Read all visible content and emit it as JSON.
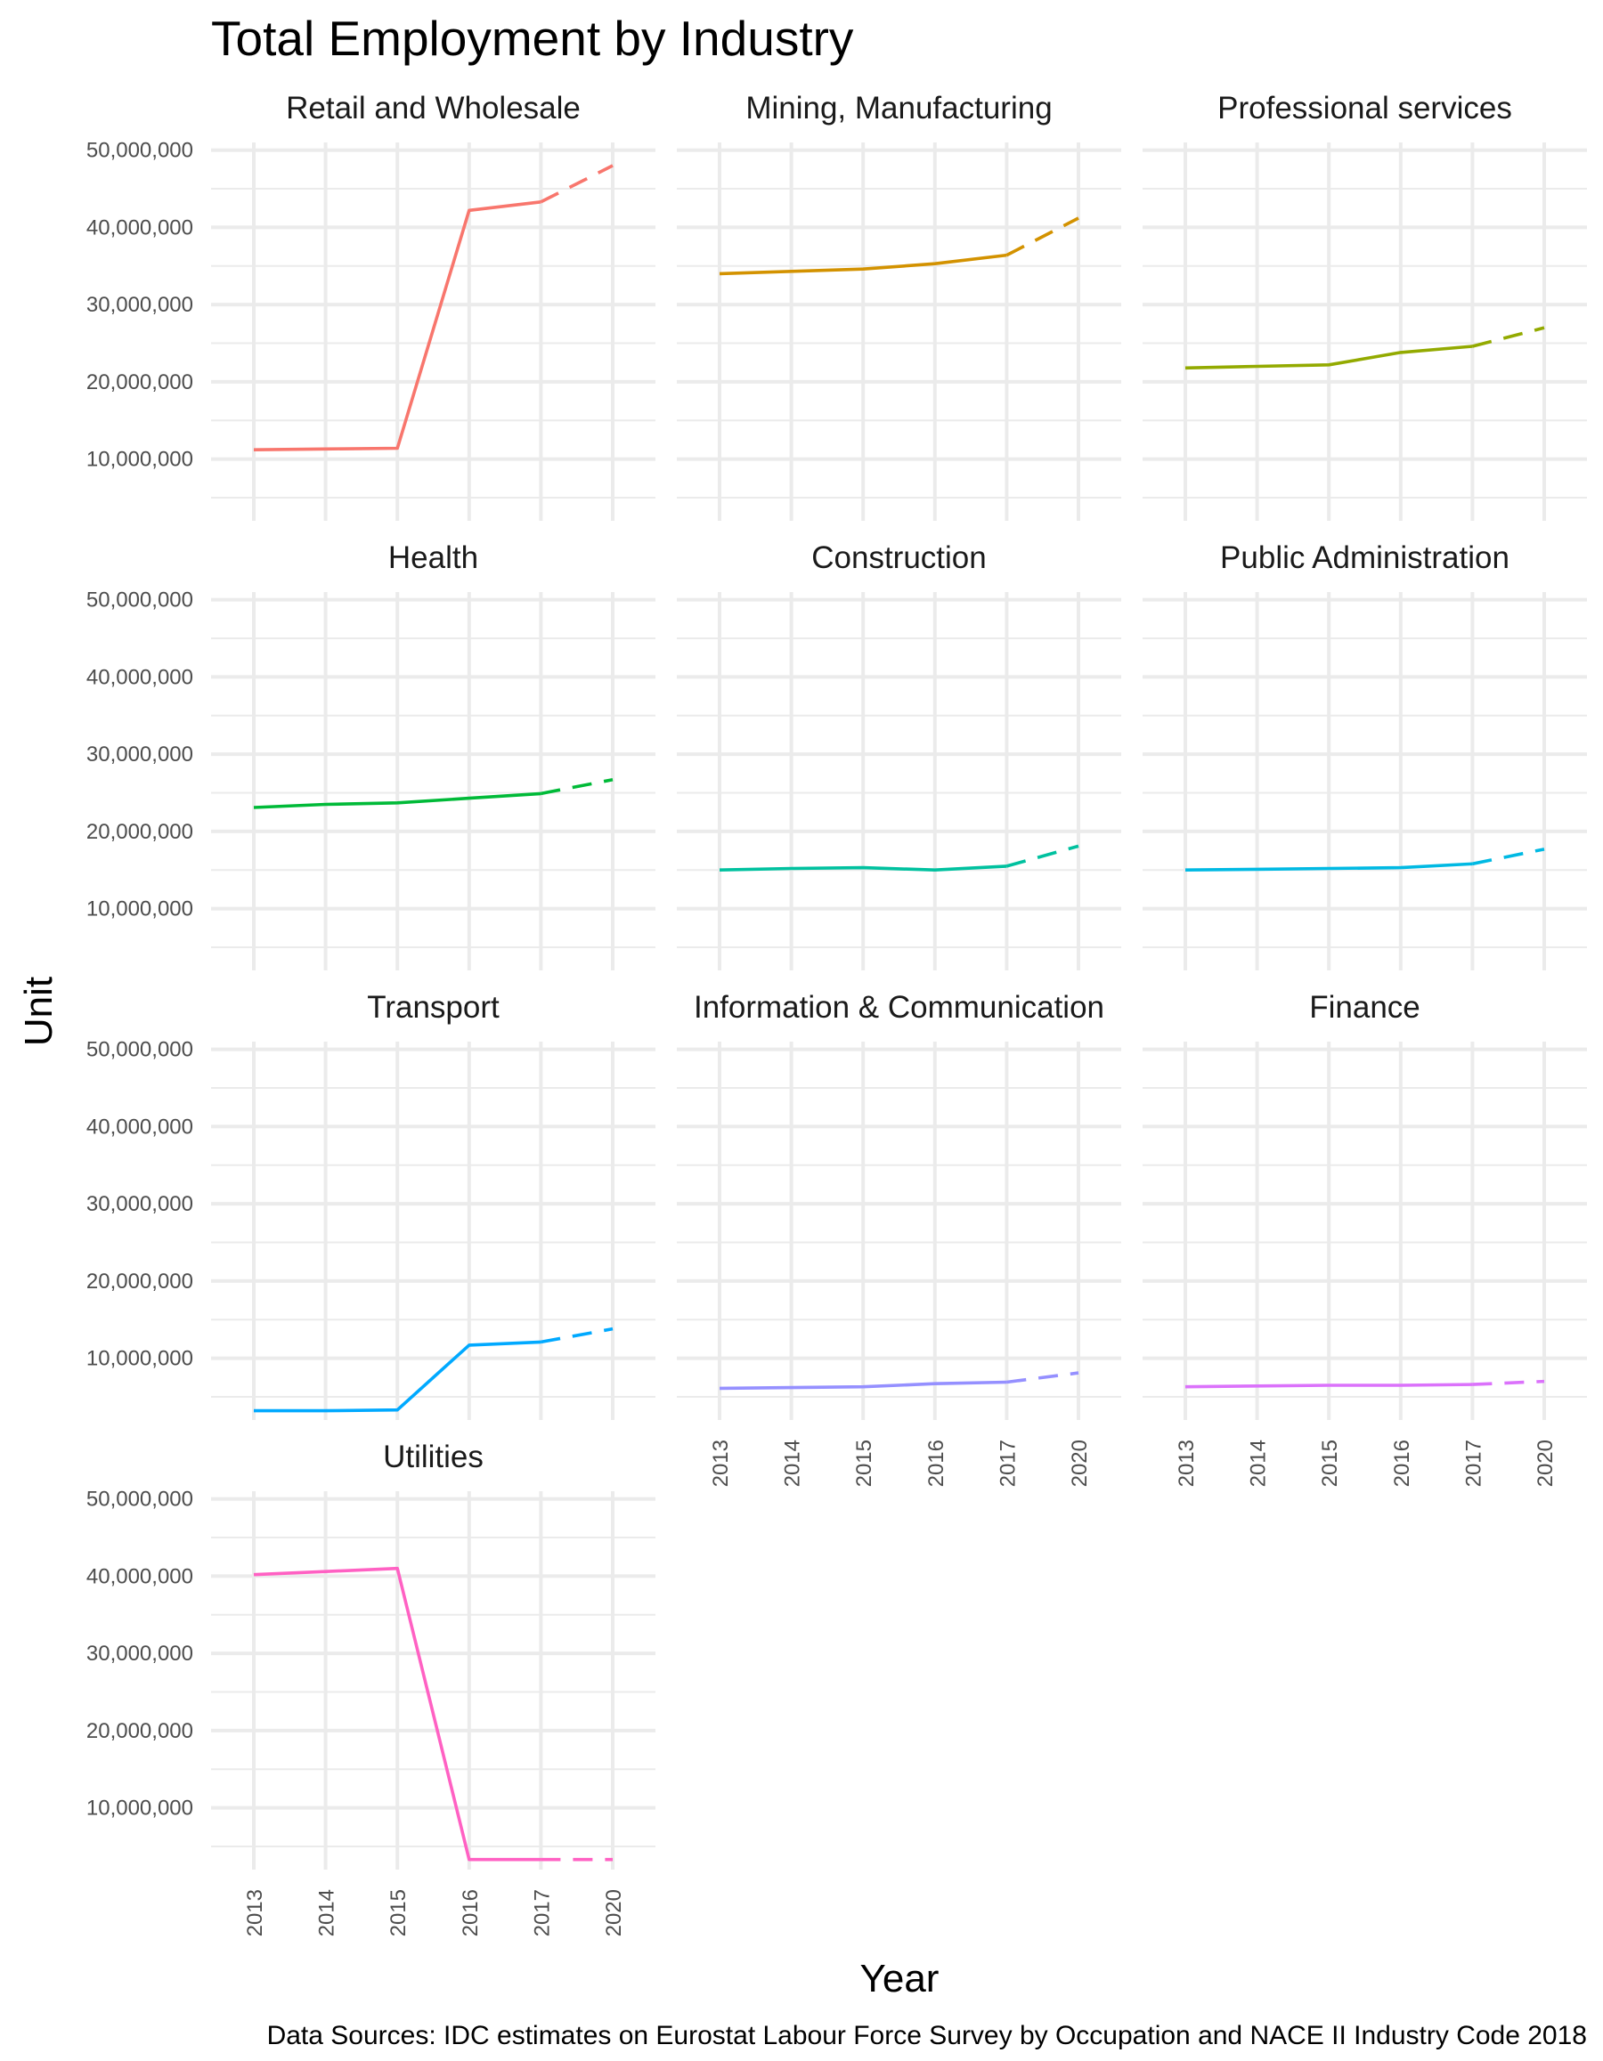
{
  "chart_data": {
    "type": "line",
    "title": "Total Employment by Industry",
    "xlabel": "Year",
    "ylabel": "Unit",
    "caption": "Data Sources: IDC estimates on Eurostat Labour Force Survey by Occupation and NACE II Industry Code 2018",
    "categories": [
      "2013",
      "2014",
      "2015",
      "2016",
      "2017",
      "2020"
    ],
    "ylim": [
      2000000,
      51000000
    ],
    "y_ticks": [
      10000000,
      20000000,
      30000000,
      40000000,
      50000000
    ],
    "y_tick_labels": [
      "10,000,000",
      "20,000,000",
      "30,000,000",
      "40,000,000",
      "50,000,000"
    ],
    "grid": true,
    "legend": "none",
    "line_style_note_by_segment": {
      "2013-2017": "solid",
      "2017-2020": "dashed"
    },
    "series": [
      {
        "name": "Retail and Wholesale",
        "color": "#F8766D",
        "values": [
          11200000,
          11300000,
          11400000,
          42200000,
          43300000,
          48000000
        ]
      },
      {
        "name": "Mining, Manufacturing",
        "color": "#D39200",
        "values": [
          34000000,
          34300000,
          34600000,
          35300000,
          36400000,
          41200000
        ]
      },
      {
        "name": "Professional services",
        "color": "#93AA00",
        "values": [
          21800000,
          22000000,
          22200000,
          23800000,
          24600000,
          27000000
        ]
      },
      {
        "name": "Health",
        "color": "#00BA38",
        "values": [
          23100000,
          23500000,
          23700000,
          24300000,
          24900000,
          26700000
        ]
      },
      {
        "name": "Construction",
        "color": "#00C19F",
        "values": [
          15000000,
          15200000,
          15300000,
          15000000,
          15500000,
          18100000
        ]
      },
      {
        "name": "Public Administration",
        "color": "#00B9E3",
        "values": [
          15000000,
          15100000,
          15200000,
          15300000,
          15800000,
          17700000
        ]
      },
      {
        "name": "Transport",
        "color": "#00A9FF",
        "values": [
          3200000,
          3200000,
          3300000,
          11700000,
          12100000,
          13800000
        ]
      },
      {
        "name": "Information & Communication",
        "color": "#9590FF",
        "values": [
          6100000,
          6200000,
          6300000,
          6700000,
          6900000,
          8100000
        ]
      },
      {
        "name": "Finance",
        "color": "#DB72FB",
        "values": [
          6300000,
          6400000,
          6500000,
          6500000,
          6600000,
          7000000
        ]
      },
      {
        "name": "Utilities",
        "color": "#FF61C3",
        "values": [
          40200000,
          40600000,
          41000000,
          3300000,
          3300000,
          3300000
        ]
      }
    ]
  }
}
